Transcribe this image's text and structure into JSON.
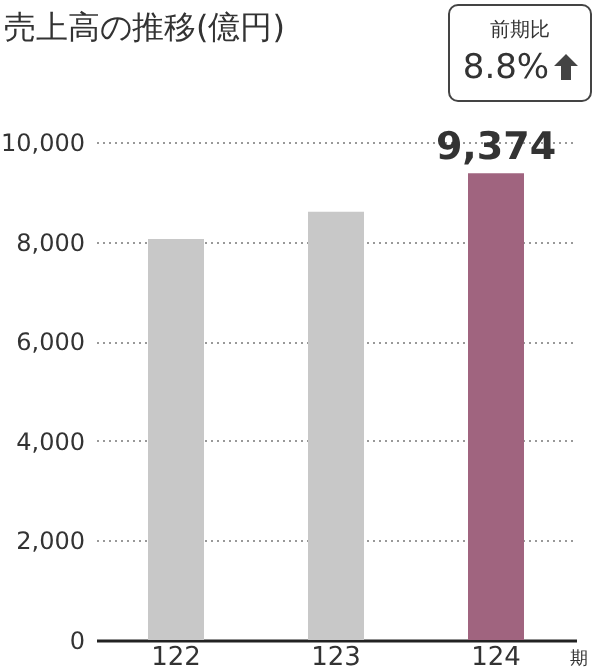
{
  "chart_data": {
    "type": "bar",
    "title": "売上高の推移(億円)",
    "xlabel": "期",
    "categories": [
      "122",
      "123",
      "124"
    ],
    "values": [
      8050,
      8600,
      9374
    ],
    "colors": [
      "#c8c8c8",
      "#c8c8c8",
      "#a0647f"
    ],
    "value_labels": [
      null,
      null,
      "9,374"
    ],
    "ylim": [
      0,
      10000
    ],
    "yticks": [
      0,
      {
        "value": 2000,
        "label": "2,000"
      },
      {
        "value": 4000,
        "label": "4,000"
      },
      {
        "value": 6000,
        "label": "6,000"
      },
      {
        "value": 8000,
        "label": "8,000"
      },
      {
        "value": 10000,
        "label": "10,000"
      }
    ],
    "grid": "y",
    "annotations": [
      "前期比",
      "8.8%"
    ]
  }
}
